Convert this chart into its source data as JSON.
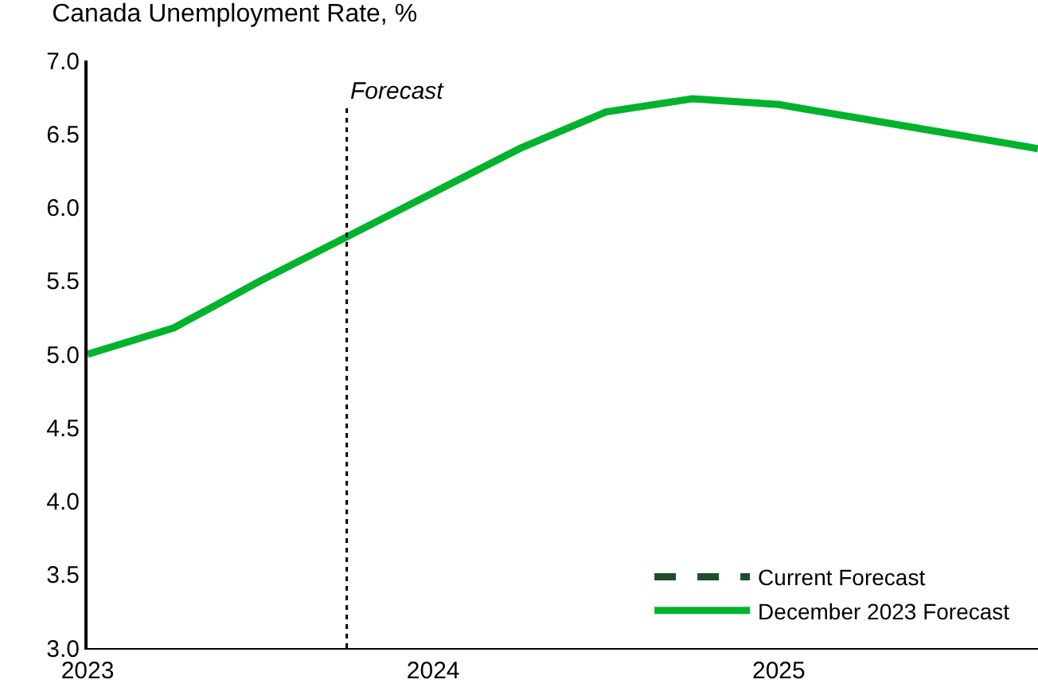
{
  "chart_data": {
    "type": "line",
    "title": "Canada Unemployment Rate, %",
    "x": [
      2023,
      2023.25,
      2023.5,
      2023.75,
      2024,
      2024.25,
      2024.5,
      2024.75,
      2025,
      2025.25,
      2025.5,
      2025.75
    ],
    "series": [
      {
        "name": "Current Forecast",
        "color": "#1e4d2b",
        "line_style": "dashed",
        "values": [
          null,
          null,
          null,
          null,
          null,
          null,
          null,
          null,
          null,
          null,
          null,
          null
        ]
      },
      {
        "name": "December 2023 Forecast",
        "color": "#00b32c",
        "line_style": "solid",
        "values": [
          5.0,
          5.18,
          5.5,
          5.8,
          6.1,
          6.4,
          6.65,
          6.74,
          6.7,
          6.6,
          6.5,
          6.4
        ]
      }
    ],
    "xlim": [
      2023,
      2025.75
    ],
    "xticks": [
      2023,
      2024,
      2025
    ],
    "ylim": [
      3.0,
      7.0
    ],
    "yticks": [
      {
        "value": 3.0,
        "label": "3.0"
      },
      {
        "value": 3.5,
        "label": "3.5"
      },
      {
        "value": 4.0,
        "label": "4.0"
      },
      {
        "value": 4.5,
        "label": "4.5"
      },
      {
        "value": 5.0,
        "label": "5.0"
      },
      {
        "value": 5.5,
        "label": "5.5"
      },
      {
        "value": 6.0,
        "label": "6.0"
      },
      {
        "value": 6.5,
        "label": "6.5"
      },
      {
        "value": 7.0,
        "label": "7.0"
      }
    ],
    "ref_lines": [
      {
        "axis": "x",
        "value": 2023.75,
        "label": "Forecast",
        "color": "#000000",
        "line_style": "dotted"
      }
    ],
    "legend": "bottom right"
  }
}
